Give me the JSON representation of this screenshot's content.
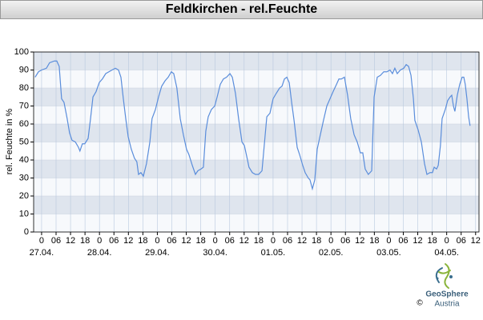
{
  "chart_data": {
    "type": "line",
    "title": "Feldkirchen - rel.Feuchte",
    "y_label": "rel. Feuchte in %",
    "xlim": [
      -3.3,
      181.4
    ],
    "ylim": [
      0,
      100
    ],
    "yticks": [
      0,
      10,
      20,
      30,
      40,
      50,
      60,
      70,
      80,
      90,
      100
    ],
    "xticks": [
      {
        "value": 0,
        "label": "0"
      },
      {
        "value": 6,
        "label": "06"
      },
      {
        "value": 12,
        "label": "12"
      },
      {
        "value": 18,
        "label": "18"
      },
      {
        "value": 24,
        "label": "0"
      },
      {
        "value": 30,
        "label": "06"
      },
      {
        "value": 36,
        "label": "12"
      },
      {
        "value": 42,
        "label": "18"
      },
      {
        "value": 48,
        "label": "0"
      },
      {
        "value": 54,
        "label": "06"
      },
      {
        "value": 60,
        "label": "12"
      },
      {
        "value": 66,
        "label": "18"
      },
      {
        "value": 72,
        "label": "0"
      },
      {
        "value": 78,
        "label": "06"
      },
      {
        "value": 84,
        "label": "12"
      },
      {
        "value": 90,
        "label": "18"
      },
      {
        "value": 96,
        "label": "0"
      },
      {
        "value": 102,
        "label": "06"
      },
      {
        "value": 108,
        "label": "12"
      },
      {
        "value": 114,
        "label": "18"
      },
      {
        "value": 120,
        "label": "0"
      },
      {
        "value": 126,
        "label": "06"
      },
      {
        "value": 132,
        "label": "12"
      },
      {
        "value": 138,
        "label": "18"
      },
      {
        "value": 144,
        "label": "0"
      },
      {
        "value": 150,
        "label": "06"
      },
      {
        "value": 156,
        "label": "12"
      },
      {
        "value": 162,
        "label": "18"
      },
      {
        "value": 168,
        "label": "0"
      },
      {
        "value": 174,
        "label": "06"
      },
      {
        "value": 180,
        "label": "12"
      }
    ],
    "date_ticks": [
      {
        "value": 0,
        "label": "27.04."
      },
      {
        "value": 24,
        "label": "28.04."
      },
      {
        "value": 48,
        "label": "29.04."
      },
      {
        "value": 72,
        "label": "30.04."
      },
      {
        "value": 96,
        "label": "01.05."
      },
      {
        "value": 120,
        "label": "02.05."
      },
      {
        "value": 144,
        "label": "03.05."
      },
      {
        "value": 168,
        "label": "04.05."
      }
    ],
    "grid": true,
    "series": [
      {
        "color": "#5a8ddb",
        "x": [
          -2.7,
          -1.3,
          0,
          2,
          3.3,
          5.3,
          6.3,
          7.3,
          8.3,
          9.3,
          10.6,
          11.6,
          12.6,
          14,
          15.3,
          15.9,
          16.9,
          17.9,
          19.3,
          20.3,
          21.3,
          22.6,
          23.9,
          25.2,
          26.6,
          27.9,
          29.2,
          30.6,
          31.9,
          32.9,
          33.9,
          34.9,
          35.9,
          37.2,
          38.5,
          39.5,
          40.2,
          41.2,
          42.2,
          43.5,
          44.9,
          45.8,
          47.2,
          48.5,
          49.8,
          51.2,
          52.5,
          53.8,
          54.8,
          56.1,
          57.5,
          58.8,
          60.1,
          61.1,
          62.5,
          63.8,
          64.8,
          66.1,
          67.1,
          68.1,
          69.1,
          70.4,
          71.8,
          72.8,
          74.1,
          75.4,
          76.7,
          78.1,
          79.1,
          80.4,
          81.7,
          83.1,
          84.1,
          85.4,
          86,
          87.4,
          88.7,
          90,
          91.4,
          92.4,
          93.4,
          94.7,
          96,
          97.3,
          98.7,
          99.7,
          100.7,
          101.7,
          102.7,
          103.7,
          104.7,
          106,
          107,
          108.3,
          109.3,
          110.6,
          111.3,
          112.3,
          113.3,
          114.3,
          115.6,
          116.9,
          118.3,
          119.6,
          120.9,
          122.3,
          123.3,
          124.3,
          125.6,
          126.9,
          128.2,
          129.6,
          130.9,
          132.2,
          133.2,
          134.2,
          135.5,
          136.9,
          137.9,
          139.2,
          140.5,
          141.9,
          143.2,
          144.5,
          145.5,
          146.5,
          147.5,
          148.8,
          150.2,
          151.2,
          152.2,
          153.2,
          154.2,
          154.8,
          156.1,
          157.5,
          158.8,
          159.8,
          161.1,
          162.1,
          162.8,
          163.8,
          164.5,
          165.4,
          166.1,
          167.4,
          168.4,
          169.4,
          170.1,
          170.8,
          171.4,
          172.4,
          173.4,
          174.4,
          175.1,
          175.7,
          176.4,
          177.1,
          177.7
        ],
        "values": [
          86,
          89,
          90,
          91,
          94,
          95,
          95,
          92,
          74,
          72,
          63,
          55,
          51,
          50,
          47,
          45,
          49,
          49,
          52,
          63,
          75,
          78,
          83,
          85,
          88,
          89,
          90,
          91,
          90,
          86,
          74,
          63,
          53,
          46,
          41,
          39,
          32,
          33,
          31,
          38,
          50,
          63,
          68,
          75,
          81,
          84,
          86,
          89,
          88,
          80,
          63,
          54,
          46,
          43,
          37,
          32,
          34,
          35,
          36,
          56,
          64,
          68,
          70,
          75,
          82,
          85,
          86,
          88,
          86,
          77,
          63,
          50,
          48,
          40,
          36,
          33,
          32,
          32,
          34,
          49,
          64,
          66,
          74,
          77,
          80,
          81,
          85,
          86,
          83,
          72,
          62,
          47,
          43,
          37,
          33,
          30,
          29,
          24,
          29,
          46,
          54,
          62,
          70,
          74,
          78,
          82,
          85,
          85,
          86,
          76,
          63,
          54,
          50,
          44,
          44,
          35,
          32,
          34,
          75,
          86,
          87,
          89,
          89,
          90,
          88,
          91,
          88,
          90,
          91,
          93,
          92,
          87,
          74,
          62,
          57,
          50,
          38,
          32,
          33,
          33,
          36,
          35,
          37,
          48,
          63,
          68,
          73,
          75,
          76,
          70,
          67,
          76,
          82,
          86,
          86,
          82,
          74,
          64,
          59
        ]
      }
    ]
  },
  "logo": {
    "name": "GeoSphere",
    "sub": "Austria",
    "copyright": "©"
  }
}
